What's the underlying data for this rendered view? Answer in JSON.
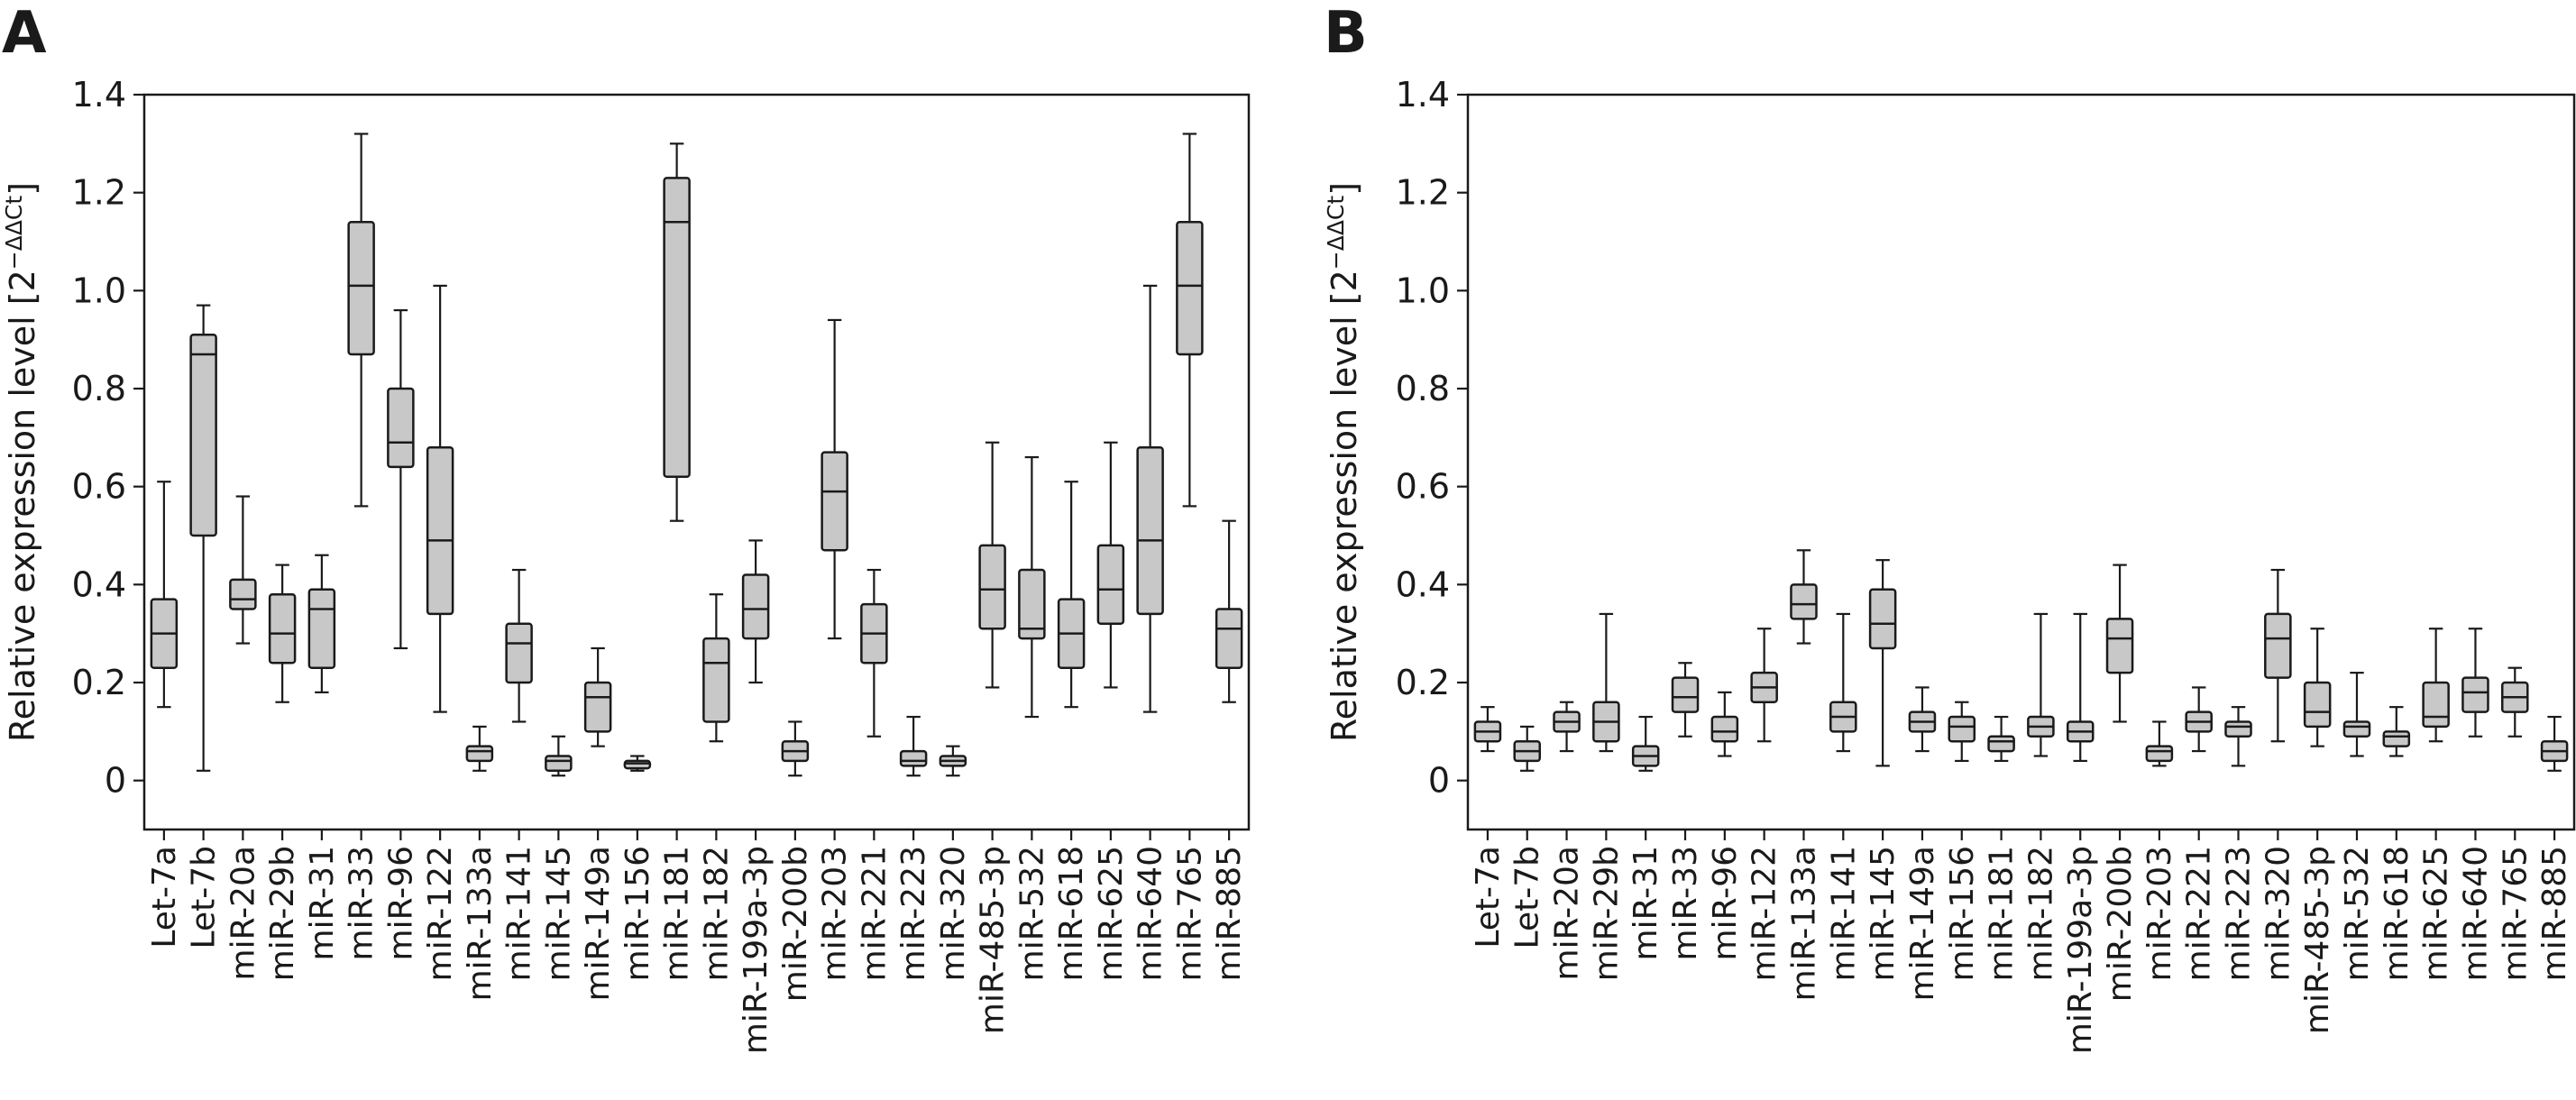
{
  "chart_data": [
    {
      "panel": "A",
      "type": "box",
      "ylabel": "Relative expression level [2",
      "ylabel_superscript": "−ΔΔCt",
      "ylabel_suffix": "]",
      "ylim": [
        -0.1,
        1.4
      ],
      "yticks": [
        0,
        0.2,
        0.4,
        0.6,
        0.8,
        1.0,
        1.2,
        1.4
      ],
      "ytick_labels": [
        "0",
        "0.2",
        "0.4",
        "0.6",
        "0.8",
        "1.0",
        "1.2",
        "1.4"
      ],
      "grid": false,
      "box_color": "#c8c8c8",
      "categories": [
        "Let-7a",
        "Let-7b",
        "miR-20a",
        "miR-29b",
        "miR-31",
        "miR-33",
        "miR-96",
        "miR-122",
        "miR-133a",
        "miR-141",
        "miR-145",
        "miR-149a",
        "miR-156",
        "miR-181",
        "miR-182",
        "miR-199a-3p",
        "miR-200b",
        "miR-203",
        "miR-221",
        "miR-223",
        "miR-320",
        "miR-485-3p",
        "miR-532",
        "miR-618",
        "miR-625",
        "miR-640",
        "miR-765",
        "miR-885"
      ],
      "boxes": [
        {
          "min": 0.15,
          "q1": 0.23,
          "median": 0.3,
          "q3": 0.37,
          "max": 0.61
        },
        {
          "min": 0.02,
          "q1": 0.5,
          "median": 0.87,
          "q3": 0.91,
          "max": 0.97
        },
        {
          "min": 0.28,
          "q1": 0.35,
          "median": 0.37,
          "q3": 0.41,
          "max": 0.58
        },
        {
          "min": 0.16,
          "q1": 0.24,
          "median": 0.3,
          "q3": 0.38,
          "max": 0.44
        },
        {
          "min": 0.18,
          "q1": 0.23,
          "median": 0.35,
          "q3": 0.39,
          "max": 0.46
        },
        {
          "min": 0.56,
          "q1": 0.87,
          "median": 1.01,
          "q3": 1.14,
          "max": 1.32
        },
        {
          "min": 0.27,
          "q1": 0.64,
          "median": 0.69,
          "q3": 0.8,
          "max": 0.96
        },
        {
          "min": 0.14,
          "q1": 0.34,
          "median": 0.49,
          "q3": 0.68,
          "max": 1.01
        },
        {
          "min": 0.02,
          "q1": 0.04,
          "median": 0.06,
          "q3": 0.07,
          "max": 0.11
        },
        {
          "min": 0.12,
          "q1": 0.2,
          "median": 0.28,
          "q3": 0.32,
          "max": 0.43
        },
        {
          "min": 0.01,
          "q1": 0.02,
          "median": 0.04,
          "q3": 0.05,
          "max": 0.09
        },
        {
          "min": 0.07,
          "q1": 0.1,
          "median": 0.17,
          "q3": 0.2,
          "max": 0.27
        },
        {
          "min": 0.02,
          "q1": 0.025,
          "median": 0.035,
          "q3": 0.04,
          "max": 0.05
        },
        {
          "min": 0.53,
          "q1": 0.62,
          "median": 1.14,
          "q3": 1.23,
          "max": 1.3
        },
        {
          "min": 0.08,
          "q1": 0.12,
          "median": 0.24,
          "q3": 0.29,
          "max": 0.38
        },
        {
          "min": 0.2,
          "q1": 0.29,
          "median": 0.35,
          "q3": 0.42,
          "max": 0.49
        },
        {
          "min": 0.01,
          "q1": 0.04,
          "median": 0.06,
          "q3": 0.08,
          "max": 0.12
        },
        {
          "min": 0.29,
          "q1": 0.47,
          "median": 0.59,
          "q3": 0.67,
          "max": 0.94
        },
        {
          "min": 0.09,
          "q1": 0.24,
          "median": 0.3,
          "q3": 0.36,
          "max": 0.43
        },
        {
          "min": 0.01,
          "q1": 0.03,
          "median": 0.04,
          "q3": 0.06,
          "max": 0.13
        },
        {
          "min": 0.01,
          "q1": 0.03,
          "median": 0.04,
          "q3": 0.05,
          "max": 0.07
        },
        {
          "min": 0.19,
          "q1": 0.31,
          "median": 0.39,
          "q3": 0.48,
          "max": 0.69
        },
        {
          "min": 0.13,
          "q1": 0.29,
          "median": 0.31,
          "q3": 0.43,
          "max": 0.66
        },
        {
          "min": 0.15,
          "q1": 0.23,
          "median": 0.3,
          "q3": 0.37,
          "max": 0.61
        },
        {
          "min": 0.19,
          "q1": 0.32,
          "median": 0.39,
          "q3": 0.48,
          "max": 0.69
        },
        {
          "min": 0.14,
          "q1": 0.34,
          "median": 0.49,
          "q3": 0.68,
          "max": 1.01
        },
        {
          "min": 0.56,
          "q1": 0.87,
          "median": 1.01,
          "q3": 1.14,
          "max": 1.32
        },
        {
          "min": 0.16,
          "q1": 0.23,
          "median": 0.31,
          "q3": 0.35,
          "max": 0.53
        }
      ]
    },
    {
      "panel": "B",
      "type": "box",
      "ylabel": "Relative expression level [2",
      "ylabel_superscript": "−ΔΔCt",
      "ylabel_suffix": "]",
      "ylim": [
        -0.1,
        1.4
      ],
      "yticks": [
        0,
        0.2,
        0.4,
        0.6,
        0.8,
        1.0,
        1.2,
        1.4
      ],
      "ytick_labels": [
        "0",
        "0.2",
        "0.4",
        "0.6",
        "0.8",
        "1.0",
        "1.2",
        "1.4"
      ],
      "grid": false,
      "box_color": "#c8c8c8",
      "categories": [
        "Let-7a",
        "Let-7b",
        "miR-20a",
        "miR-29b",
        "miR-31",
        "miR-33",
        "miR-96",
        "miR-122",
        "miR-133a",
        "miR-141",
        "miR-145",
        "miR-149a",
        "miR-156",
        "miR-181",
        "miR-182",
        "miR-199a-3p",
        "miR-200b",
        "miR-203",
        "miR-221",
        "miR-223",
        "miR-320",
        "miR-485-3p",
        "miR-532",
        "miR-618",
        "miR-625",
        "miR-640",
        "miR-765",
        "miR-885"
      ],
      "boxes": [
        {
          "min": 0.06,
          "q1": 0.08,
          "median": 0.1,
          "q3": 0.12,
          "max": 0.15
        },
        {
          "min": 0.02,
          "q1": 0.04,
          "median": 0.06,
          "q3": 0.08,
          "max": 0.11
        },
        {
          "min": 0.06,
          "q1": 0.1,
          "median": 0.12,
          "q3": 0.14,
          "max": 0.16
        },
        {
          "min": 0.06,
          "q1": 0.08,
          "median": 0.12,
          "q3": 0.16,
          "max": 0.34
        },
        {
          "min": 0.02,
          "q1": 0.03,
          "median": 0.05,
          "q3": 0.07,
          "max": 0.13
        },
        {
          "min": 0.09,
          "q1": 0.14,
          "median": 0.17,
          "q3": 0.21,
          "max": 0.24
        },
        {
          "min": 0.05,
          "q1": 0.08,
          "median": 0.1,
          "q3": 0.13,
          "max": 0.18
        },
        {
          "min": 0.08,
          "q1": 0.16,
          "median": 0.19,
          "q3": 0.22,
          "max": 0.31
        },
        {
          "min": 0.28,
          "q1": 0.33,
          "median": 0.36,
          "q3": 0.4,
          "max": 0.47
        },
        {
          "min": 0.06,
          "q1": 0.1,
          "median": 0.13,
          "q3": 0.16,
          "max": 0.34
        },
        {
          "min": 0.03,
          "q1": 0.27,
          "median": 0.32,
          "q3": 0.39,
          "max": 0.45
        },
        {
          "min": 0.06,
          "q1": 0.1,
          "median": 0.12,
          "q3": 0.14,
          "max": 0.19
        },
        {
          "min": 0.04,
          "q1": 0.08,
          "median": 0.11,
          "q3": 0.13,
          "max": 0.16
        },
        {
          "min": 0.04,
          "q1": 0.06,
          "median": 0.08,
          "q3": 0.09,
          "max": 0.13
        },
        {
          "min": 0.05,
          "q1": 0.09,
          "median": 0.11,
          "q3": 0.13,
          "max": 0.34
        },
        {
          "min": 0.04,
          "q1": 0.08,
          "median": 0.1,
          "q3": 0.12,
          "max": 0.34
        },
        {
          "min": 0.12,
          "q1": 0.22,
          "median": 0.29,
          "q3": 0.33,
          "max": 0.44
        },
        {
          "min": 0.03,
          "q1": 0.04,
          "median": 0.06,
          "q3": 0.07,
          "max": 0.12
        },
        {
          "min": 0.06,
          "q1": 0.1,
          "median": 0.12,
          "q3": 0.14,
          "max": 0.19
        },
        {
          "min": 0.03,
          "q1": 0.09,
          "median": 0.11,
          "q3": 0.12,
          "max": 0.15
        },
        {
          "min": 0.08,
          "q1": 0.21,
          "median": 0.29,
          "q3": 0.34,
          "max": 0.43
        },
        {
          "min": 0.07,
          "q1": 0.11,
          "median": 0.14,
          "q3": 0.2,
          "max": 0.31
        },
        {
          "min": 0.05,
          "q1": 0.09,
          "median": 0.11,
          "q3": 0.12,
          "max": 0.22
        },
        {
          "min": 0.05,
          "q1": 0.07,
          "median": 0.09,
          "q3": 0.1,
          "max": 0.15
        },
        {
          "min": 0.08,
          "q1": 0.11,
          "median": 0.13,
          "q3": 0.2,
          "max": 0.31
        },
        {
          "min": 0.09,
          "q1": 0.14,
          "median": 0.18,
          "q3": 0.21,
          "max": 0.31
        },
        {
          "min": 0.09,
          "q1": 0.14,
          "median": 0.17,
          "q3": 0.2,
          "max": 0.23
        },
        {
          "min": 0.02,
          "q1": 0.04,
          "median": 0.06,
          "q3": 0.08,
          "max": 0.13
        }
      ]
    }
  ]
}
